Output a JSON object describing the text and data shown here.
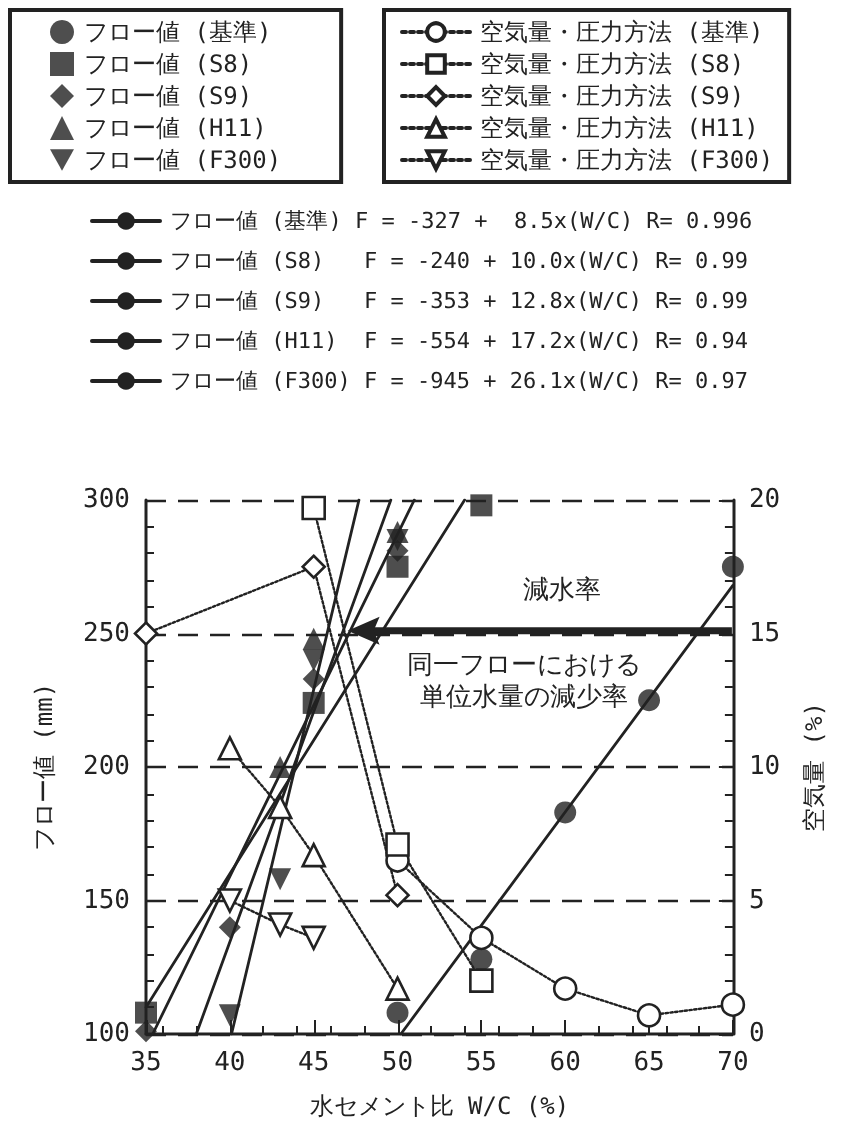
{
  "chart_data": {
    "type": "line",
    "xlabel": "水セメント比 W/C (%)",
    "ylabel": "フロー値 (mm)",
    "y2label": "空気量 (%)",
    "xlim": [
      35,
      70
    ],
    "xticks": [
      35,
      40,
      45,
      50,
      55,
      60,
      65,
      70
    ],
    "ylim": [
      100,
      300
    ],
    "yticks": [
      100,
      150,
      200,
      250,
      300
    ],
    "y2lim": [
      0,
      20
    ],
    "y2ticks": [
      0,
      5,
      10,
      15,
      20
    ],
    "grid": "y",
    "legend": "top",
    "annotations": [
      "減水率",
      "同一フローにおける",
      "単位水量の減少率"
    ],
    "series": [
      {
        "name": "フロー値 (基準)",
        "type": "scatter",
        "marker": "circle",
        "color": "#222222",
        "x": [
          50,
          55,
          60,
          65,
          70
        ],
        "values": [
          108,
          128,
          183,
          225,
          275
        ]
      },
      {
        "name": "フロー値 (S8)",
        "type": "scatter",
        "marker": "square",
        "color": "#222222",
        "x": [
          35,
          45,
          50,
          55
        ],
        "values": [
          108,
          224,
          275,
          298
        ]
      },
      {
        "name": "フロー値 (S9)",
        "type": "scatter",
        "marker": "diamond",
        "color": "#222222",
        "x": [
          35,
          40,
          45,
          50
        ],
        "values": [
          101,
          140,
          233,
          281
        ]
      },
      {
        "name": "フロー値 (H11)",
        "type": "scatter",
        "marker": "triangle",
        "color": "#222222",
        "x": [
          43,
          45,
          50
        ],
        "values": [
          200,
          248,
          288
        ]
      },
      {
        "name": "フロー値 (F300)",
        "type": "scatter",
        "marker": "triangle-down",
        "color": "#222222",
        "x": [
          40,
          43,
          45,
          50
        ],
        "values": [
          107,
          158,
          240,
          285
        ]
      },
      {
        "name": "空気量・圧力方法 (基準)",
        "axis": "y2",
        "line_style": "dotted",
        "marker": "circle-open",
        "color": "#222222",
        "x": [
          50,
          55,
          60,
          65,
          70
        ],
        "values": [
          6.5,
          3.6,
          1.7,
          0.7,
          1.1
        ]
      },
      {
        "name": "空気量・圧力方法 (S8)",
        "axis": "y2",
        "line_style": "dotted",
        "marker": "square-open",
        "color": "#222222",
        "x": [
          45,
          50,
          55
        ],
        "values": [
          19.7,
          7.1,
          2.0
        ]
      },
      {
        "name": "空気量・圧力方法 (S9)",
        "axis": "y2",
        "line_style": "dotted",
        "marker": "diamond-open",
        "color": "#222222",
        "x": [
          35,
          45,
          50
        ],
        "values": [
          15,
          17.5,
          5.2
        ]
      },
      {
        "name": "空気量・圧力方法 (H11)",
        "axis": "y2",
        "line_style": "dotted",
        "marker": "triangle-open",
        "color": "#222222",
        "x": [
          40,
          43,
          45,
          50
        ],
        "values": [
          10.7,
          8.5,
          6.7,
          1.7
        ]
      },
      {
        "name": "空気量・圧力方法 (F300)",
        "axis": "y2",
        "line_style": "dotted",
        "marker": "triangle-down-open",
        "color": "#222222",
        "x": [
          40,
          43,
          45
        ],
        "values": [
          5.0,
          4.1,
          3.6
        ]
      },
      {
        "name": "フロー値 (基準) F = -327 +  8.5x(W/C) R= 0.996",
        "line_style": "solid",
        "color": "#222222",
        "x": [
          50.2,
          70
        ],
        "values": [
          100,
          268
        ]
      },
      {
        "name": "フロー値 (S8)   F = -240 + 10.0x(W/C) R= 0.99",
        "line_style": "solid",
        "color": "#222222",
        "x": [
          35,
          54
        ],
        "values": [
          110,
          300
        ]
      },
      {
        "name": "フロー値 (S9)   F = -353 + 12.8x(W/C) R= 0.99",
        "line_style": "solid",
        "color": "#222222",
        "x": [
          35.4,
          51
        ],
        "values": [
          100,
          300
        ]
      },
      {
        "name": "フロー値 (H11)  F = -554 + 17.2x(W/C) R= 0.94",
        "line_style": "solid",
        "color": "#222222",
        "x": [
          38,
          49.6
        ],
        "values": [
          100,
          300
        ]
      },
      {
        "name": "フロー値 (F300) F = -945 + 26.1x(W/C) R= 0.97",
        "line_style": "solid",
        "color": "#222222",
        "x": [
          40.1,
          47.7
        ],
        "values": [
          100,
          300
        ]
      }
    ]
  }
}
